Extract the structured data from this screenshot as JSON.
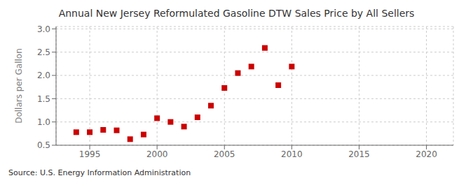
{
  "chart_data": {
    "type": "scatter",
    "title": "Annual New Jersey Reformulated Gasoline DTW Sales Price by All Sellers",
    "ylabel": "Dollars per Gallon",
    "annotation": "Source: U.S. Energy Information Administration",
    "x": [
      1994,
      1995,
      1996,
      1997,
      1998,
      1999,
      2000,
      2001,
      2002,
      2003,
      2004,
      2005,
      2006,
      2007,
      2008,
      2009,
      2010
    ],
    "values": [
      0.78,
      0.78,
      0.83,
      0.82,
      0.63,
      0.73,
      1.08,
      1.0,
      0.9,
      1.1,
      1.35,
      1.73,
      2.05,
      2.19,
      2.59,
      1.79,
      2.19
    ],
    "color": "#cc0000",
    "marker": "square",
    "xlim": [
      1992.5,
      2022
    ],
    "xticks": [
      1995,
      2000,
      2005,
      2010,
      2015,
      2020
    ],
    "ylim": [
      0.5,
      3.05
    ],
    "yticks": [
      0.5,
      {
        "value": 1.0,
        "label": "1.0"
      },
      1.5,
      {
        "value": 2.0,
        "label": "2.0"
      },
      2.5,
      {
        "value": 3.0,
        "label": "3.0"
      }
    ],
    "grid": true
  }
}
